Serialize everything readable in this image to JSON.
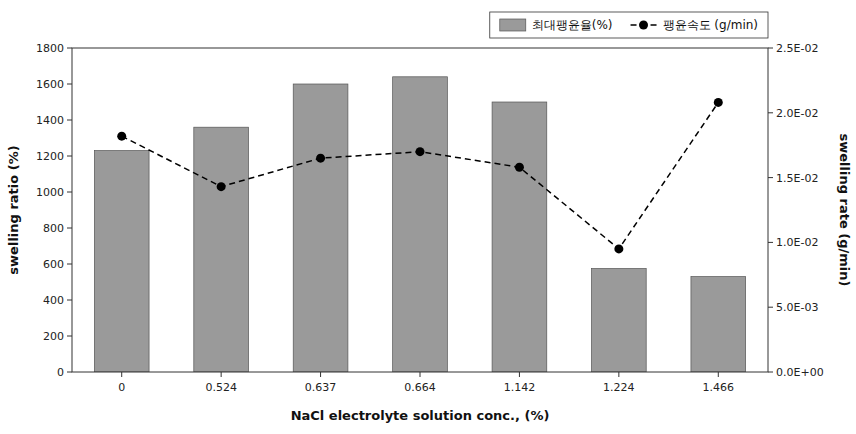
{
  "chart_data": {
    "type": "bar",
    "categories": [
      "0",
      "0.524",
      "0.637",
      "0.664",
      "1.142",
      "1.224",
      "1.466"
    ],
    "xlabel": "NaCl electrolyte solution conc., (%)",
    "ylabel": "swelling ratio (%)",
    "y2label": "swelling rate (g/min)",
    "ylim": [
      0,
      1800
    ],
    "yticks": [
      0,
      200,
      400,
      600,
      800,
      1000,
      1200,
      1400,
      1600,
      1800
    ],
    "y2lim": [
      0.0,
      0.025
    ],
    "y2ticks": [
      {
        "value": 0.0,
        "label": "0.0E+00"
      },
      {
        "value": 0.005,
        "label": "5.0E-03"
      },
      {
        "value": 0.01,
        "label": "1.0E-02"
      },
      {
        "value": 0.015,
        "label": "1.5E-02"
      },
      {
        "value": 0.02,
        "label": "2.0E-02"
      },
      {
        "value": 0.025,
        "label": "2.5E-02"
      }
    ],
    "grid": false,
    "legend": "upper right",
    "series": [
      {
        "name": "최대팽윤율(%)",
        "type": "bar",
        "color": "#9a9a9a",
        "values": [
          1230,
          1360,
          1600,
          1640,
          1500,
          575,
          530
        ]
      },
      {
        "name": "팽윤속도 (g/min)",
        "type": "line",
        "axis": "y2",
        "color": "#000000",
        "marker": "circle",
        "line_style": "dashed",
        "values": [
          0.0182,
          0.0143,
          0.0165,
          0.017,
          0.0158,
          0.0095,
          0.0208
        ]
      }
    ]
  }
}
